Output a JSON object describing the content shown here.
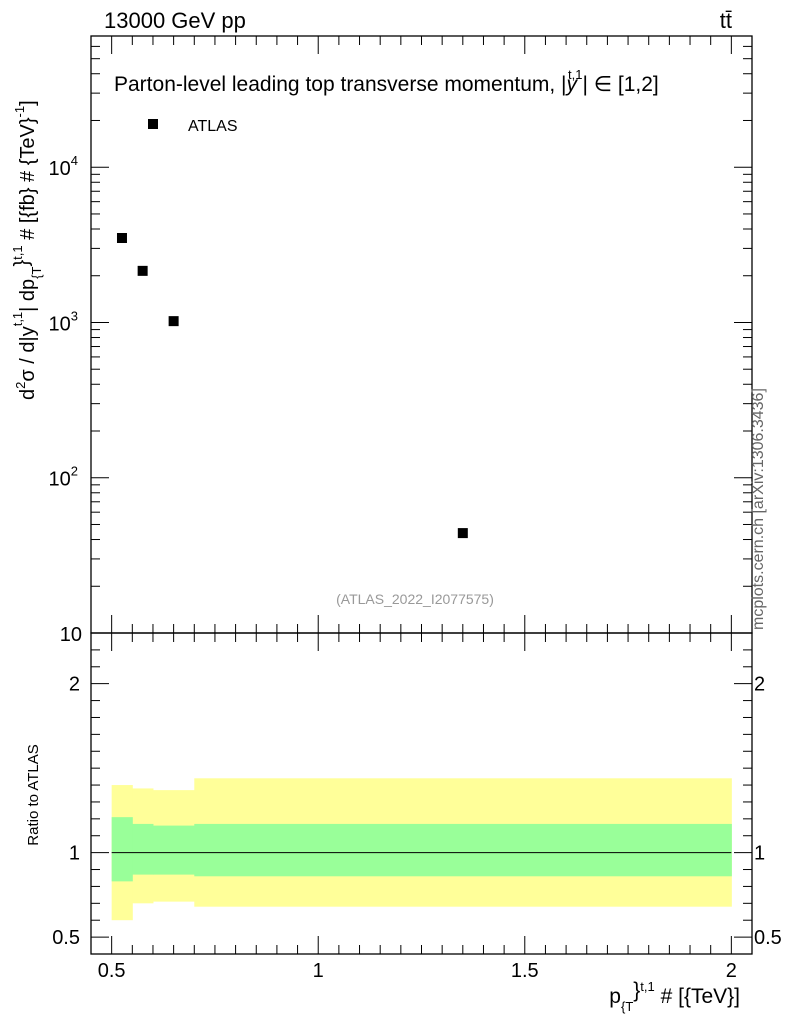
{
  "header": {
    "energy_label": "13000 GeV pp",
    "process_label": "tt̄"
  },
  "source_label": "mcplots.cern.ch [arXiv:1306.3436]",
  "analysis_id": "(ATLAS_2022_I2077575)",
  "chart_data": [
    {
      "panel": "main",
      "type": "scatter",
      "title": "Parton-level leading top transverse momentum, |y^{t,1}| ∈ [1,2]",
      "title_parts": {
        "pre": "Parton-level leading top transverse momentum, |",
        "y": "y",
        "sup": "t,1",
        "post": "| ∈ [1,2]"
      },
      "ylabel_parts": {
        "a": "d",
        "a_sup": "2",
        "b": "σ / d|y",
        "b_sup": "t,1",
        "c": "| dp",
        "c_sub": "{T",
        "c_sup": "}",
        "c_sup2": "t,1",
        "d": " # [{fb} # {TeV}",
        "d_sup": "-1",
        "e": "]"
      },
      "xlabel_parts": {
        "a": "p",
        "a_sub": "{T",
        "b_sup": "}",
        "b_sup2": "t,1",
        "c": " # [{TeV}]"
      },
      "yscale": "log",
      "ylim": [
        10,
        70000
      ],
      "xlim": [
        0.45,
        2.05
      ],
      "y_ticks": [
        {
          "value": 10,
          "label": "10"
        },
        {
          "value": 100,
          "label": "10",
          "exp": "2"
        },
        {
          "value": 1000,
          "label": "10",
          "exp": "3"
        },
        {
          "value": 10000,
          "label": "10",
          "exp": "4"
        }
      ],
      "legend": {
        "placement": "top-left",
        "entries": [
          {
            "label": "ATLAS",
            "marker": "square",
            "color": "#000000"
          }
        ]
      },
      "series": [
        {
          "name": "ATLAS",
          "marker": "square",
          "color": "#000000",
          "x": [
            0.525,
            0.575,
            0.65,
            1.35
          ],
          "y": [
            3500,
            2150,
            1020,
            44
          ]
        }
      ]
    },
    {
      "panel": "ratio",
      "type": "area",
      "ylabel": "Ratio to ATLAS",
      "xlim": [
        0.45,
        2.05
      ],
      "ylim": [
        0.4,
        2.3
      ],
      "y_ticks": [
        {
          "value": 0.5,
          "label": "0.5"
        },
        {
          "value": 1,
          "label": "1"
        },
        {
          "value": 2,
          "label": "2"
        }
      ],
      "x_ticks": [
        {
          "value": 0.5,
          "label": "0.5"
        },
        {
          "value": 1,
          "label": "1"
        },
        {
          "value": 1.5,
          "label": "1.5"
        },
        {
          "value": 2,
          "label": "2"
        }
      ],
      "reference_line": 1,
      "bands": [
        {
          "name": "total",
          "color": "#ffff99",
          "bins": [
            [
              0.5,
              0.55,
              0.6,
              1.4
            ],
            [
              0.55,
              0.6,
              0.7,
              1.38
            ],
            [
              0.6,
              0.7,
              0.71,
              1.37
            ],
            [
              0.7,
              2.0,
              0.68,
              1.44
            ]
          ]
        },
        {
          "name": "stat",
          "color": "#99ff99",
          "bins": [
            [
              0.5,
              0.55,
              0.83,
              1.21
            ],
            [
              0.55,
              0.6,
              0.87,
              1.17
            ],
            [
              0.6,
              0.7,
              0.87,
              1.16
            ],
            [
              0.7,
              2.0,
              0.86,
              1.17
            ]
          ]
        }
      ]
    }
  ]
}
